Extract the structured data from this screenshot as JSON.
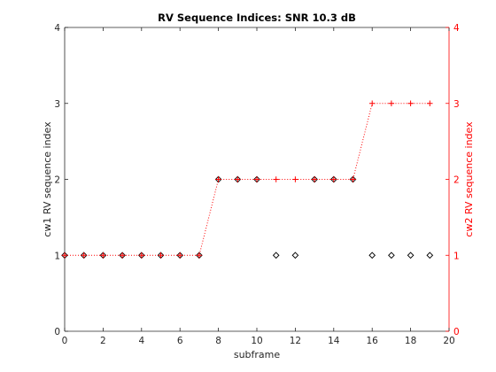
{
  "chart_data": {
    "type": "scatter",
    "title": "RV Sequence Indices: SNR 10.3 dB",
    "xlabel": "subframe",
    "ylabel_left": "cw1  RV sequence index",
    "ylabel_right": "cw2  RV sequence index",
    "xlim": [
      0,
      20
    ],
    "ylim": [
      0,
      4
    ],
    "xticks": [
      "0",
      "2",
      "4",
      "6",
      "8",
      "10",
      "12",
      "14",
      "16",
      "18",
      "20"
    ],
    "yticks_left": [
      "0",
      "1",
      "2",
      "3",
      "4"
    ],
    "yticks_right": [
      "0",
      "1",
      "2",
      "3",
      "4"
    ],
    "grid": false,
    "colors": {
      "cw1": "#000000",
      "cw2": "#ff0000",
      "axis_left": "#262626",
      "axis_right": "#ff0000"
    },
    "series": [
      {
        "marker": "diamond",
        "line": "none",
        "x": [
          0,
          1,
          2,
          3,
          4,
          5,
          6,
          7,
          8,
          9,
          10,
          11,
          12,
          13,
          14,
          15,
          16,
          17,
          18,
          19
        ],
        "y": [
          1,
          1,
          1,
          1,
          1,
          1,
          1,
          1,
          2,
          2,
          2,
          1,
          1,
          2,
          2,
          2,
          1,
          1,
          1,
          1
        ]
      },
      {
        "marker": "plus",
        "line": "dotted",
        "x": [
          0,
          1,
          2,
          3,
          4,
          5,
          6,
          7,
          8,
          9,
          10,
          11,
          12,
          13,
          14,
          15,
          16,
          17,
          18,
          19
        ],
        "y": [
          1,
          1,
          1,
          1,
          1,
          1,
          1,
          1,
          2,
          2,
          2,
          2,
          2,
          2,
          2,
          2,
          3,
          3,
          3,
          3
        ]
      }
    ]
  }
}
